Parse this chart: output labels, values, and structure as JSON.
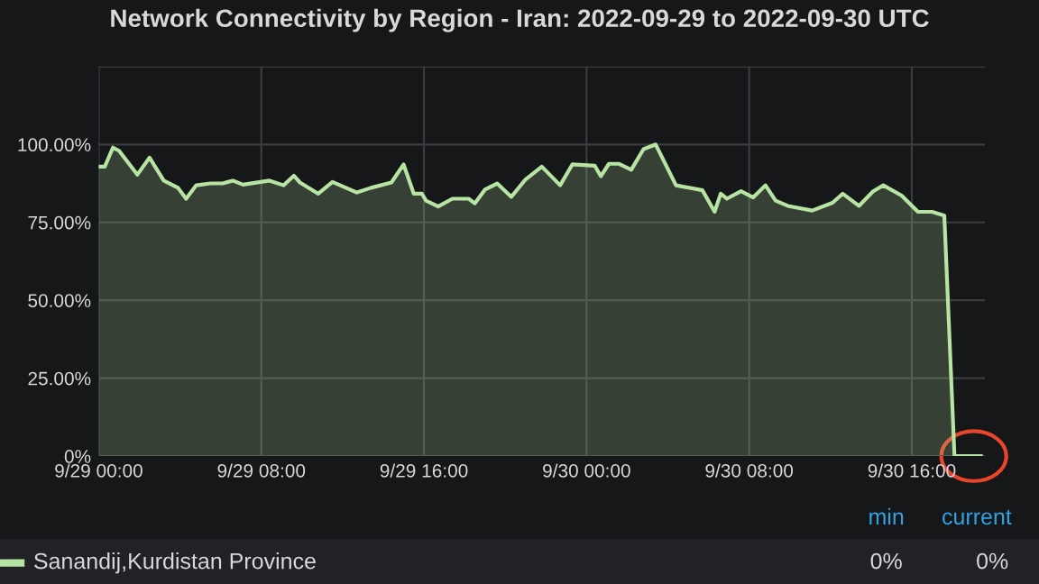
{
  "chart_data": {
    "type": "area",
    "title": "Network Connectivity by Region - Iran: 2022-09-29 to 2022-09-30 UTC",
    "x": [
      "2022-09-29T00:00",
      "2022-09-29T00:18",
      "2022-09-29T00:42",
      "2022-09-29T01:00",
      "2022-09-29T01:54",
      "2022-09-29T02:30",
      "2022-09-29T03:12",
      "2022-09-29T03:54",
      "2022-09-29T04:18",
      "2022-09-29T04:48",
      "2022-09-29T05:30",
      "2022-09-29T06:06",
      "2022-09-29T06:36",
      "2022-09-29T07:06",
      "2022-09-29T08:24",
      "2022-09-29T09:06",
      "2022-09-29T09:36",
      "2022-09-29T09:54",
      "2022-09-29T10:48",
      "2022-09-29T11:30",
      "2022-09-29T12:42",
      "2022-09-29T13:24",
      "2022-09-29T14:24",
      "2022-09-29T15:00",
      "2022-09-29T15:30",
      "2022-09-29T15:54",
      "2022-09-29T16:06",
      "2022-09-29T16:42",
      "2022-09-29T17:24",
      "2022-09-29T18:12",
      "2022-09-29T18:30",
      "2022-09-29T19:00",
      "2022-09-29T19:36",
      "2022-09-29T20:18",
      "2022-09-29T21:00",
      "2022-09-29T21:48",
      "2022-09-29T22:42",
      "2022-09-29T23:18",
      "2022-09-30T00:24",
      "2022-09-30T00:42",
      "2022-09-30T01:06",
      "2022-09-30T01:36",
      "2022-09-30T02:12",
      "2022-09-30T02:48",
      "2022-09-30T03:24",
      "2022-09-30T04:24",
      "2022-09-30T05:42",
      "2022-09-30T06:18",
      "2022-09-30T06:36",
      "2022-09-30T06:54",
      "2022-09-30T07:36",
      "2022-09-30T08:12",
      "2022-09-30T08:48",
      "2022-09-30T09:18",
      "2022-09-30T09:54",
      "2022-09-30T11:06",
      "2022-09-30T12:06",
      "2022-09-30T12:36",
      "2022-09-30T13:24",
      "2022-09-30T14:06",
      "2022-09-30T14:36",
      "2022-09-30T15:30",
      "2022-09-30T16:18",
      "2022-09-30T17:00",
      "2022-09-30T17:36",
      "2022-09-30T18:06",
      "2022-09-30T19:24"
    ],
    "series": [
      {
        "name": "Sanandij,Kurdistan Province",
        "color": "#b7e4a2",
        "values": [
          92.9,
          92.9,
          99,
          98,
          90.3,
          95.8,
          88.4,
          86.1,
          82.6,
          86.9,
          87.5,
          87.5,
          88.4,
          87.1,
          88.4,
          86.9,
          90,
          87.8,
          84.2,
          88,
          84.6,
          86.1,
          87.8,
          93.6,
          84.2,
          84.2,
          82,
          80.1,
          82.6,
          82.6,
          81.1,
          85.5,
          87.5,
          83.2,
          88.8,
          92.9,
          86.9,
          93.6,
          93.2,
          89.8,
          93.8,
          93.8,
          91.9,
          98.5,
          100,
          86.9,
          85.3,
          78.4,
          84.2,
          82.6,
          85,
          83,
          86.9,
          82,
          80.3,
          78.8,
          81.3,
          84.2,
          80.3,
          85,
          86.9,
          83.6,
          78.4,
          78.4,
          77.2,
          0,
          0
        ]
      }
    ],
    "xlim": [
      "2022-09-29T00:00",
      "2022-09-30T19:36"
    ],
    "xticks": [
      {
        "value": "2022-09-29T00:00",
        "label": "9/29 00:00"
      },
      {
        "value": "2022-09-29T08:00",
        "label": "9/29 08:00"
      },
      {
        "value": "2022-09-29T16:00",
        "label": "9/29 16:00"
      },
      {
        "value": "2022-09-30T00:00",
        "label": "9/30 00:00"
      },
      {
        "value": "2022-09-30T08:00",
        "label": "9/30 08:00"
      },
      {
        "value": "2022-09-30T16:00",
        "label": "9/30 16:00"
      }
    ],
    "ylim": [
      0,
      125
    ],
    "yticks": [
      {
        "value": 0,
        "label": "0%"
      },
      {
        "value": 25,
        "label": "25.00%"
      },
      {
        "value": 50,
        "label": "50.00%"
      },
      {
        "value": 75,
        "label": "75.00%"
      },
      {
        "value": 100,
        "label": "100.00%"
      },
      {
        "value": 125,
        "label": null
      }
    ],
    "grid": true,
    "legend": "bottom",
    "annotations": [
      "min",
      "current",
      "0%",
      "0%"
    ]
  }
}
